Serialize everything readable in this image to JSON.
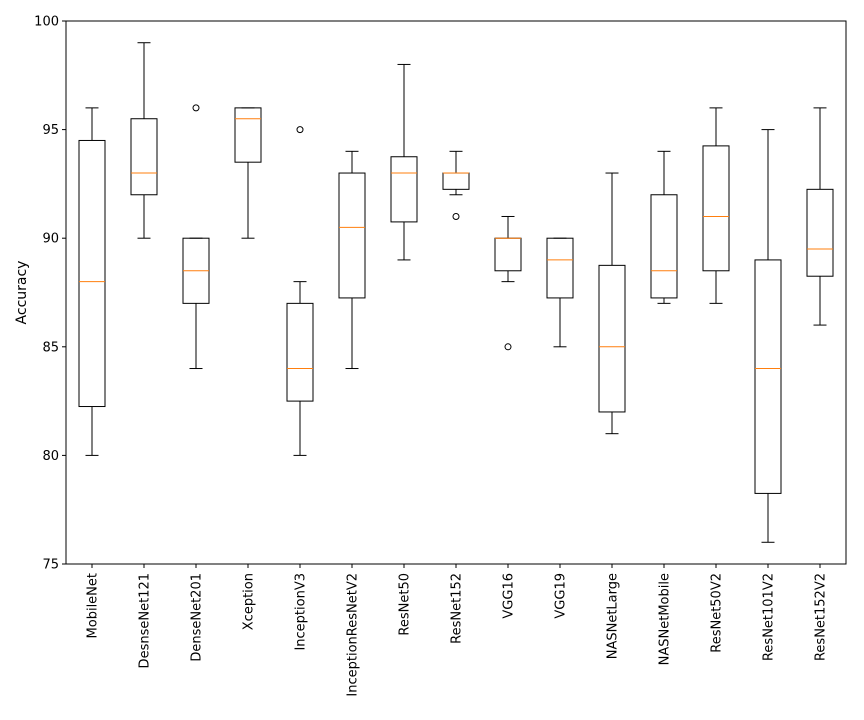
{
  "chart_data": {
    "type": "box",
    "title": "",
    "xlabel": "",
    "ylabel": "Accuracy",
    "ylim": [
      75,
      100
    ],
    "yticks": [
      75,
      80,
      85,
      90,
      95,
      100
    ],
    "grid": false,
    "categories": [
      "MobileNet",
      "DesnseNet121",
      "DenseNet201",
      "Xception",
      "InceptionV3",
      "InceptionResNetV2",
      "ResNet50",
      "ResNet152",
      "VGG16",
      "VGG19",
      "NASNetLarge",
      "NASNetMobile",
      "ResNet50V2",
      "ResNet101V2",
      "ResNet152V2"
    ],
    "boxes": [
      {
        "whisker_low": 80,
        "q1": 82.25,
        "median": 88,
        "q3": 94.5,
        "whisker_high": 96,
        "outliers": []
      },
      {
        "whisker_low": 90,
        "q1": 92,
        "median": 93,
        "q3": 95.5,
        "whisker_high": 99,
        "outliers": []
      },
      {
        "whisker_low": 84,
        "q1": 87,
        "median": 88.5,
        "q3": 90,
        "whisker_high": 90,
        "outliers": [
          96
        ]
      },
      {
        "whisker_low": 90,
        "q1": 93.5,
        "median": 95.5,
        "q3": 96,
        "whisker_high": 96,
        "outliers": []
      },
      {
        "whisker_low": 80,
        "q1": 82.5,
        "median": 84,
        "q3": 87,
        "whisker_high": 88,
        "outliers": [
          95
        ]
      },
      {
        "whisker_low": 84,
        "q1": 87.25,
        "median": 90.5,
        "q3": 93,
        "whisker_high": 94,
        "outliers": []
      },
      {
        "whisker_low": 89,
        "q1": 90.75,
        "median": 93,
        "q3": 93.75,
        "whisker_high": 98,
        "outliers": []
      },
      {
        "whisker_low": 92,
        "q1": 92.25,
        "median": 93,
        "q3": 93,
        "whisker_high": 94,
        "outliers": [
          91
        ]
      },
      {
        "whisker_low": 88,
        "q1": 88.5,
        "median": 90,
        "q3": 90,
        "whisker_high": 91,
        "outliers": [
          85
        ]
      },
      {
        "whisker_low": 85,
        "q1": 87.25,
        "median": 89,
        "q3": 90,
        "whisker_high": 90,
        "outliers": []
      },
      {
        "whisker_low": 81,
        "q1": 82,
        "median": 85,
        "q3": 88.75,
        "whisker_high": 93,
        "outliers": []
      },
      {
        "whisker_low": 87,
        "q1": 87.25,
        "median": 88.5,
        "q3": 92,
        "whisker_high": 94,
        "outliers": []
      },
      {
        "whisker_low": 87,
        "q1": 88.5,
        "median": 91,
        "q3": 94.25,
        "whisker_high": 96,
        "outliers": []
      },
      {
        "whisker_low": 76,
        "q1": 78.25,
        "median": 84,
        "q3": 89,
        "whisker_high": 95,
        "outliers": []
      },
      {
        "whisker_low": 86,
        "q1": 88.25,
        "median": 89.5,
        "q3": 92.25,
        "whisker_high": 96,
        "outliers": []
      }
    ],
    "colors": {
      "box": "#000000",
      "median": "#ff7f0e",
      "outlier": "#000000"
    }
  }
}
